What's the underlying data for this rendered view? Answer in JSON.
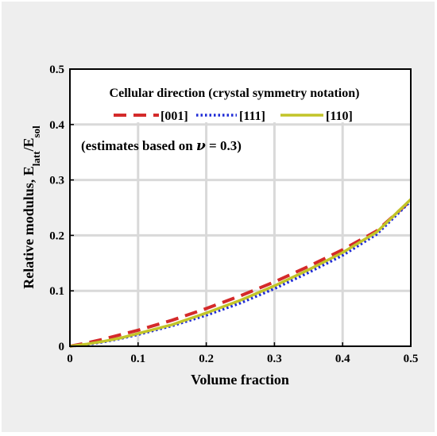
{
  "chart_data": {
    "type": "line",
    "title": "",
    "xlabel": "Volume fraction",
    "ylabel": "Relative modulus, E",
    "ylabel_sub1": "latt",
    "ylabel_mid": "/E",
    "ylabel_sub2": "sol",
    "xlim": [
      0,
      0.5
    ],
    "ylim": [
      0,
      0.5
    ],
    "xticks": [
      "0",
      "0.1",
      "0.2",
      "0.3",
      "0.4",
      "0.5"
    ],
    "yticks": [
      "0",
      "0.1",
      "0.2",
      "0.3",
      "0.4",
      "0.5"
    ],
    "grid": true,
    "legend_title": "Cellular direction (crystal symmetry notation)",
    "legend_placement": "top",
    "annotation": {
      "prefix": "(estimates based on ",
      "symbol": "ν",
      "suffix": " = 0.3)"
    },
    "x": [
      0,
      0.025,
      0.05,
      0.075,
      0.1,
      0.15,
      0.2,
      0.25,
      0.3,
      0.35,
      0.4,
      0.45,
      0.5
    ],
    "series": [
      {
        "name": "[001]",
        "color": "#d42a2a",
        "style": "dashed",
        "values": [
          0,
          0.006,
          0.013,
          0.021,
          0.029,
          0.047,
          0.068,
          0.091,
          0.116,
          0.144,
          0.174,
          0.208,
          0.263
        ]
      },
      {
        "name": "[111]",
        "color": "#1f2bd6",
        "style": "dotted",
        "values": [
          0,
          0.003,
          0.008,
          0.014,
          0.021,
          0.037,
          0.056,
          0.078,
          0.104,
          0.133,
          0.164,
          0.202,
          0.262
        ]
      },
      {
        "name": "[110]",
        "color": "#c2c428",
        "style": "solid",
        "values": [
          0,
          0.004,
          0.009,
          0.015,
          0.023,
          0.039,
          0.06,
          0.083,
          0.109,
          0.138,
          0.169,
          0.206,
          0.265
        ]
      }
    ]
  }
}
